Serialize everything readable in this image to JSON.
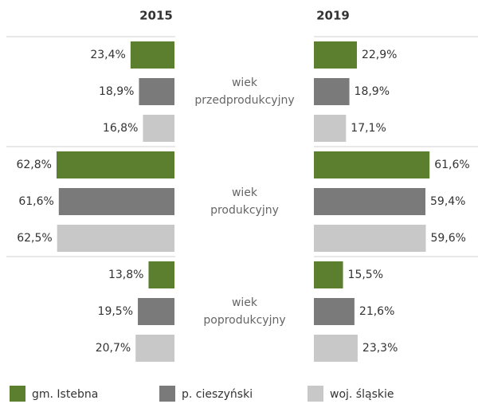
{
  "chart_data": {
    "type": "bar",
    "panels": [
      "2015",
      "2019"
    ],
    "categories": [
      "wiek przedprodukcyjny",
      "wiek produkcyjny",
      "wiek poprodukcyjny"
    ],
    "xlim": [
      0,
      70
    ],
    "series": [
      {
        "name": "gm. Istebna",
        "color": "#5b7f2f",
        "values": [
          [
            23.4,
            62.8,
            13.8
          ],
          [
            22.9,
            61.6,
            15.5
          ]
        ],
        "value_labels": [
          [
            "23,4%",
            "62,8%",
            "13,8%"
          ],
          [
            "22,9%",
            "61,6%",
            "15,5%"
          ]
        ]
      },
      {
        "name": "p. cieszyński",
        "color": "#7a7a7a",
        "values": [
          [
            18.9,
            61.6,
            19.5
          ],
          [
            18.9,
            59.4,
            21.6
          ]
        ],
        "value_labels": [
          [
            "18,9%",
            "61,6%",
            "19,5%"
          ],
          [
            "18,9%",
            "59,4%",
            "21,6%"
          ]
        ]
      },
      {
        "name": "woj. śląskie",
        "color": "#c8c8c8",
        "values": [
          [
            16.8,
            62.5,
            20.7
          ],
          [
            17.1,
            59.6,
            23.3
          ]
        ],
        "value_labels": [
          [
            "16,8%",
            "62,5%",
            "20,7%"
          ],
          [
            "17,1%",
            "59,6%",
            "23,3%"
          ]
        ]
      }
    ],
    "legend": "bottom"
  }
}
